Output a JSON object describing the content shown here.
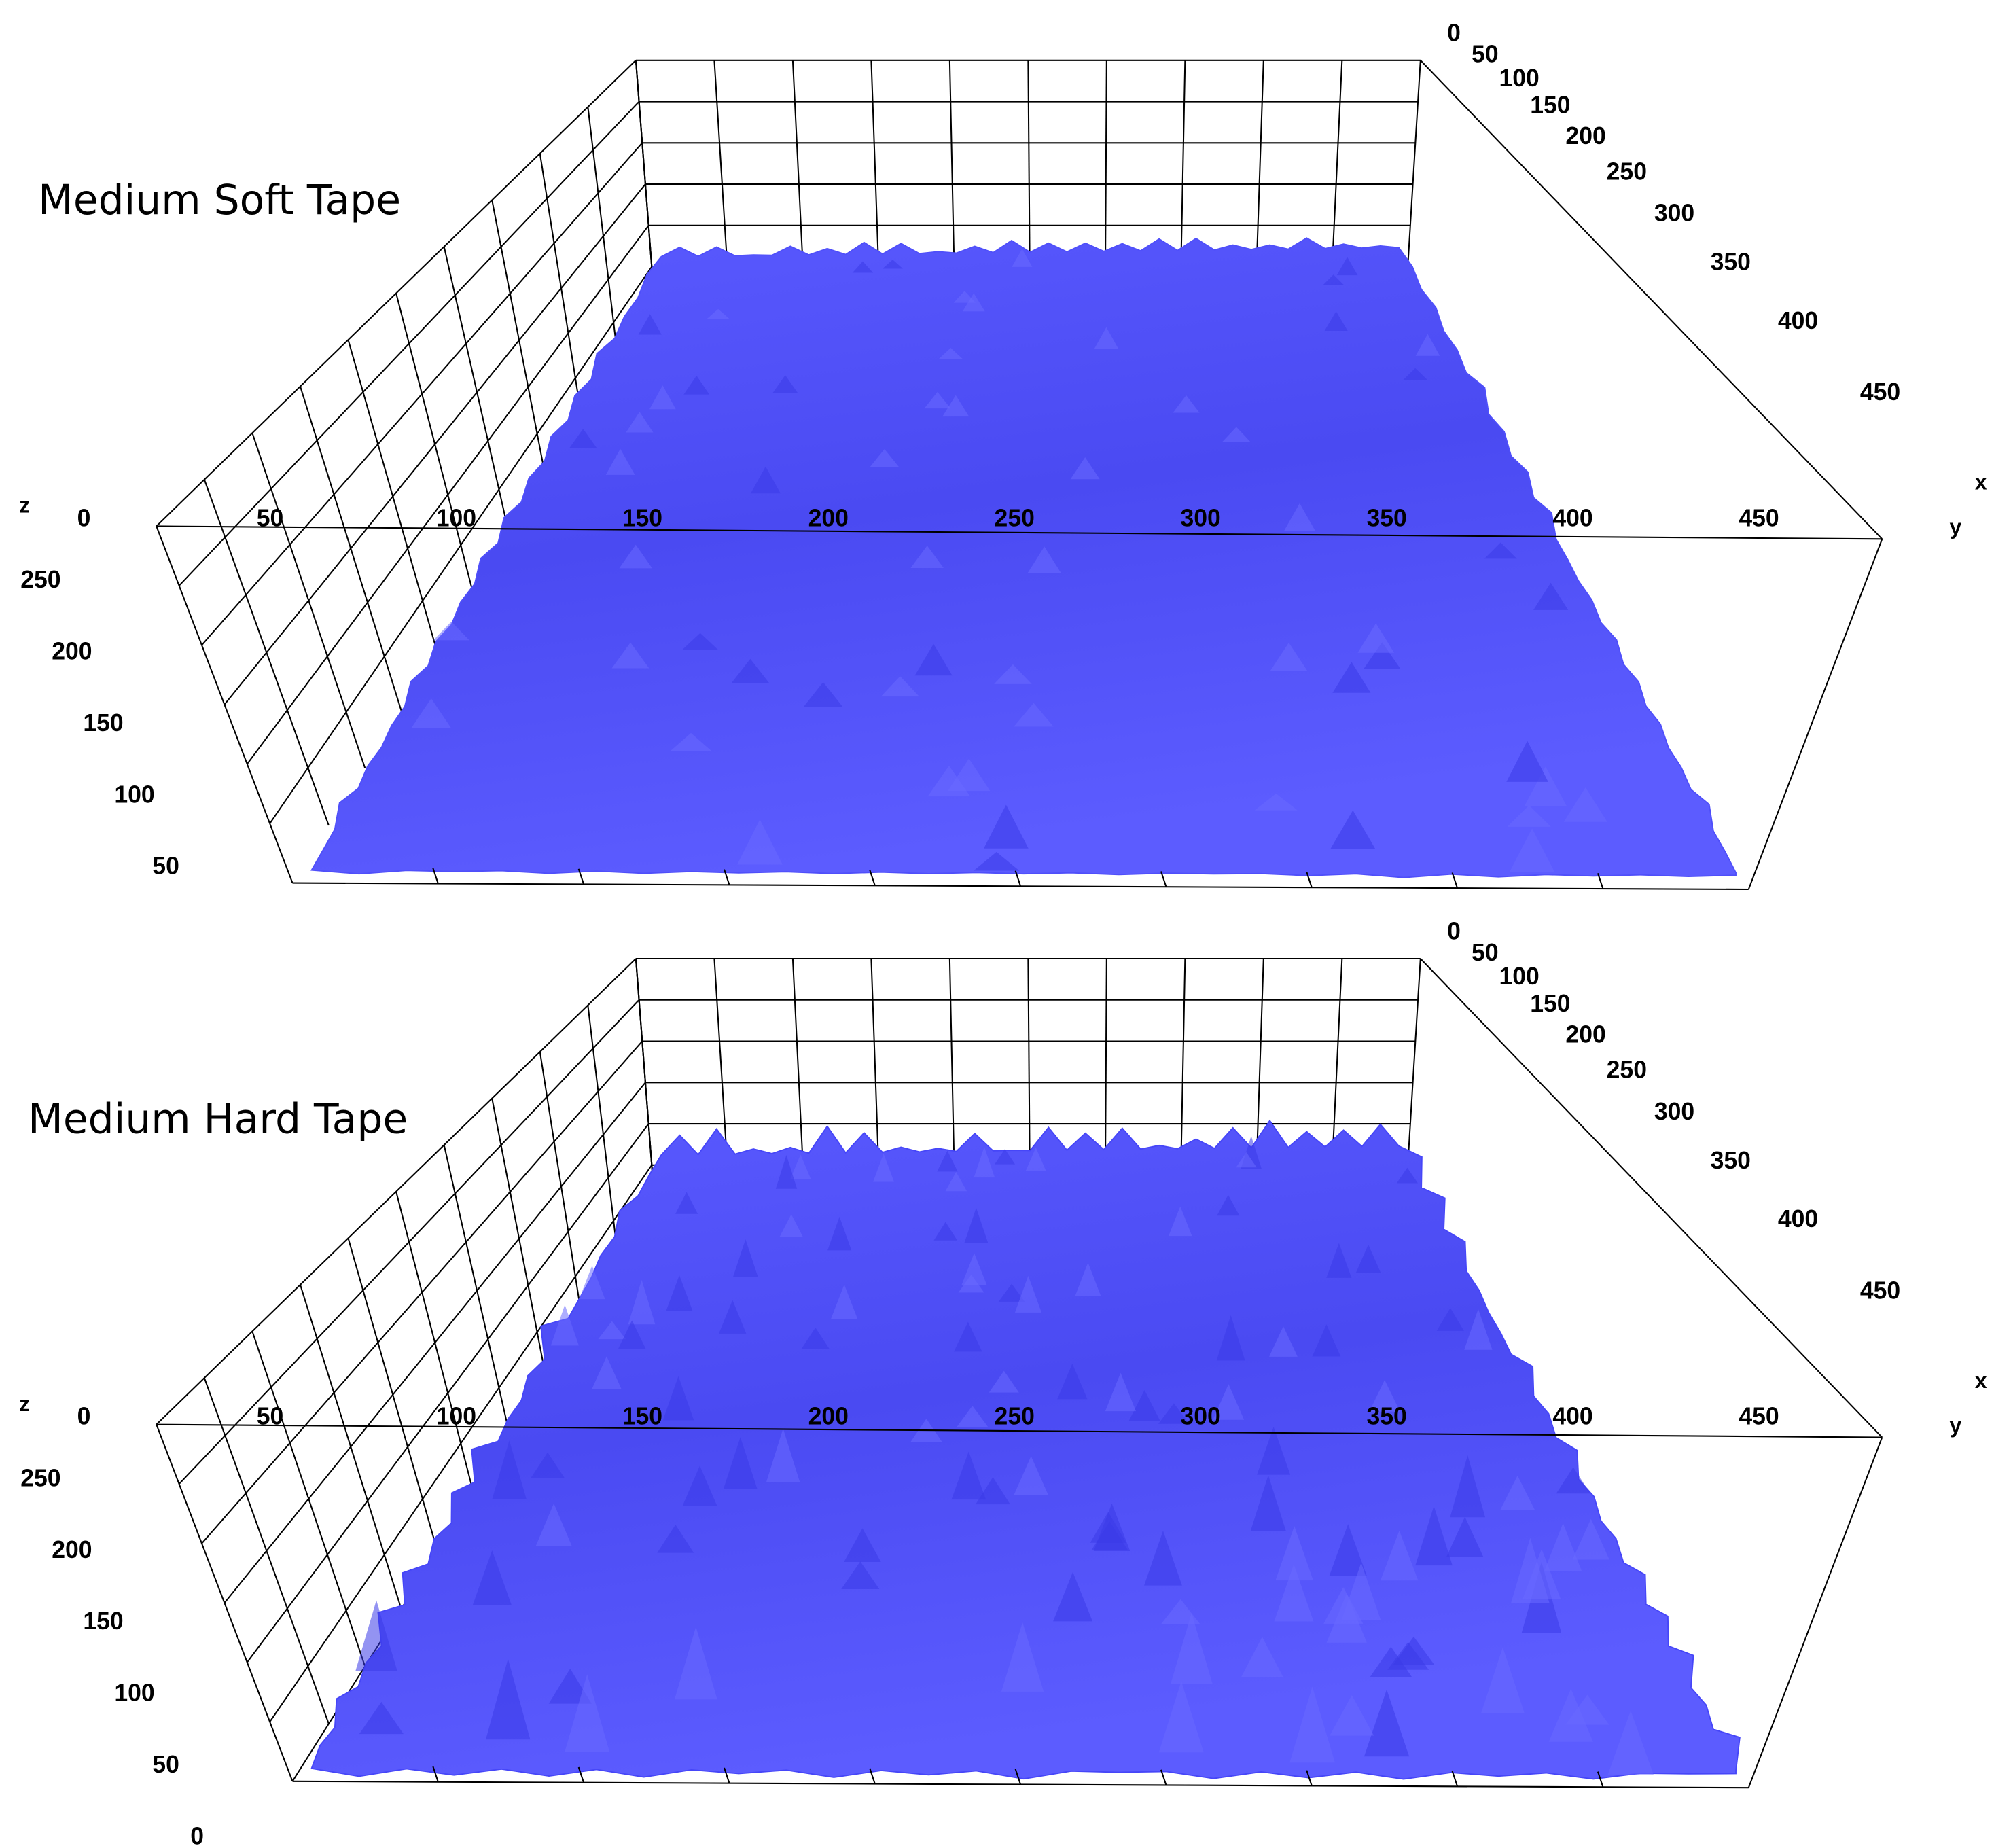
{
  "chart_data": [
    {
      "type": "surface",
      "title": "Medium Soft Tape",
      "x_label": "x",
      "y_label": "y",
      "z_label": "z",
      "color": "#4f4ffa",
      "xlim": [
        0,
        500
      ],
      "xticks": [
        0,
        50,
        100,
        150,
        200,
        250,
        300,
        350,
        400,
        450
      ],
      "ylim": [
        0,
        500
      ],
      "yticks": [
        0,
        50,
        100,
        150,
        200,
        250,
        300,
        350,
        400,
        450
      ],
      "zlim": [
        0,
        300
      ],
      "zticks": [
        50,
        100,
        150,
        200,
        250
      ]
    },
    {
      "type": "surface",
      "title": "Medium Hard Tape",
      "x_label": "x",
      "y_label": "y",
      "z_label": "z",
      "color": "#4646f8",
      "xlim": [
        0,
        500
      ],
      "xticks": [
        0,
        50,
        100,
        150,
        200,
        250,
        300,
        350,
        400,
        450
      ],
      "ylim": [
        0,
        500
      ],
      "yticks": [
        0,
        50,
        100,
        150,
        200,
        250,
        300,
        350,
        400,
        450
      ],
      "zlim": [
        0,
        300
      ],
      "zticks": [
        0,
        50,
        100,
        150,
        200,
        250
      ]
    }
  ]
}
